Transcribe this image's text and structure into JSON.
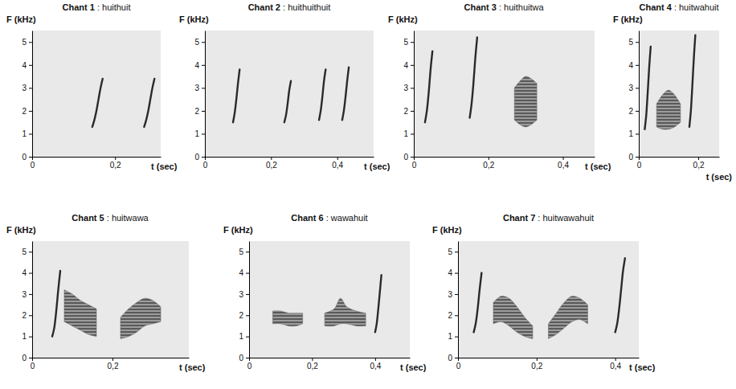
{
  "chart_data": [
    {
      "type": "spectrogram",
      "title": "Chant 1 : huithuit",
      "x_label": "t (sec)",
      "y_label": "F (kHz)",
      "xlim": [
        0,
        0.31
      ],
      "ylim": [
        0,
        5.5
      ],
      "xticks": [
        0,
        {
          "value": 0.2,
          "label": "0,2"
        }
      ],
      "yticks": [
        0,
        1,
        2,
        3,
        4,
        5
      ],
      "series": [
        {
          "type": "line",
          "x": [
            0.145,
            0.15,
            0.155,
            0.16,
            0.165,
            0.17
          ],
          "values": [
            1.3,
            1.6,
            2.0,
            2.5,
            3.0,
            3.4
          ]
        },
        {
          "type": "line",
          "x": [
            0.27,
            0.275,
            0.28,
            0.285,
            0.29,
            0.295
          ],
          "values": [
            1.3,
            1.6,
            2.0,
            2.5,
            3.0,
            3.4
          ]
        }
      ]
    },
    {
      "type": "spectrogram",
      "title": "Chant 2 : huithuithuit",
      "x_label": "t (sec)",
      "y_label": "F (kHz)",
      "xlim": [
        0,
        0.51
      ],
      "ylim": [
        0,
        5.5
      ],
      "xticks": [
        0,
        {
          "value": 0.2,
          "label": "0,2"
        },
        {
          "value": 0.4,
          "label": "0,4"
        }
      ],
      "yticks": [
        0,
        1,
        2,
        3,
        4,
        5
      ],
      "series": [
        {
          "type": "line",
          "x": [
            0.085,
            0.09,
            0.095,
            0.1,
            0.105
          ],
          "values": [
            1.5,
            1.9,
            2.5,
            3.2,
            3.8
          ]
        },
        {
          "type": "line",
          "x": [
            0.24,
            0.245,
            0.25,
            0.255,
            0.26
          ],
          "values": [
            1.5,
            1.8,
            2.3,
            2.9,
            3.3
          ]
        },
        {
          "type": "line",
          "x": [
            0.345,
            0.35,
            0.355,
            0.36,
            0.365
          ],
          "values": [
            1.6,
            2.0,
            2.6,
            3.3,
            3.8
          ]
        },
        {
          "type": "line",
          "x": [
            0.415,
            0.42,
            0.425,
            0.43,
            0.435
          ],
          "values": [
            1.6,
            2.0,
            2.6,
            3.3,
            3.9
          ]
        }
      ]
    },
    {
      "type": "spectrogram",
      "title": "Chant 3 : huithuitwa",
      "x_label": "t (sec)",
      "y_label": "F (kHz)",
      "xlim": [
        0,
        0.485
      ],
      "ylim": [
        0,
        5.5
      ],
      "xticks": [
        0,
        {
          "value": 0.2,
          "label": "0,2"
        },
        {
          "value": 0.4,
          "label": "0,4"
        }
      ],
      "yticks": [
        0,
        1,
        2,
        3,
        4,
        5
      ],
      "series": [
        {
          "type": "line",
          "x": [
            0.03,
            0.035,
            0.04,
            0.045,
            0.05
          ],
          "values": [
            1.5,
            2.0,
            2.8,
            3.8,
            4.6
          ]
        },
        {
          "type": "line",
          "x": [
            0.15,
            0.155,
            0.16,
            0.165,
            0.17
          ],
          "values": [
            1.7,
            2.3,
            3.2,
            4.3,
            5.2
          ]
        },
        {
          "type": "area",
          "x": [
            0.27,
            0.285,
            0.3,
            0.315,
            0.33
          ],
          "values": [
            3.0,
            3.3,
            3.5,
            3.4,
            3.2
          ],
          "low": [
            1.6,
            1.4,
            1.3,
            1.4,
            1.6
          ]
        }
      ]
    },
    {
      "type": "spectrogram",
      "title": "Chant 4 : huitwahuit",
      "x_label": "t (sec)",
      "y_label": "F (kHz)",
      "xlim": [
        0,
        0.27
      ],
      "ylim": [
        0,
        5.5
      ],
      "xticks": [
        0,
        {
          "value": 0.2,
          "label": "0,2"
        }
      ],
      "yticks": [
        0,
        1,
        2,
        3,
        4,
        5
      ],
      "series": [
        {
          "type": "line",
          "x": [
            0.02,
            0.025,
            0.03,
            0.035,
            0.04
          ],
          "values": [
            1.2,
            1.8,
            2.8,
            3.9,
            4.8
          ]
        },
        {
          "type": "area",
          "x": [
            0.06,
            0.08,
            0.1,
            0.12,
            0.14
          ],
          "values": [
            2.3,
            2.7,
            2.9,
            2.7,
            2.3
          ],
          "low": [
            1.3,
            1.2,
            1.2,
            1.3,
            1.5
          ]
        },
        {
          "type": "line",
          "x": [
            0.17,
            0.175,
            0.18,
            0.185,
            0.19
          ],
          "values": [
            1.3,
            2.0,
            3.1,
            4.3,
            5.3
          ]
        }
      ]
    },
    {
      "type": "spectrogram",
      "title": "Chant 5 : huitwawa",
      "x_label": "t (sec)",
      "y_label": "F (kHz)",
      "xlim": [
        0,
        0.39
      ],
      "ylim": [
        0,
        5.5
      ],
      "xticks": [
        0,
        {
          "value": 0.2,
          "label": "0,2"
        }
      ],
      "yticks": [
        0,
        1,
        2,
        3,
        4,
        5
      ],
      "series": [
        {
          "type": "line",
          "x": [
            0.05,
            0.055,
            0.06,
            0.065,
            0.07
          ],
          "values": [
            1.0,
            1.4,
            2.2,
            3.2,
            4.1
          ]
        },
        {
          "type": "area",
          "x": [
            0.08,
            0.1,
            0.12,
            0.14,
            0.16
          ],
          "values": [
            3.2,
            3.0,
            2.7,
            2.5,
            2.3
          ],
          "low": [
            1.7,
            1.5,
            1.3,
            1.1,
            1.0
          ]
        },
        {
          "type": "area",
          "x": [
            0.22,
            0.24,
            0.26,
            0.28,
            0.3,
            0.32
          ],
          "values": [
            1.9,
            2.3,
            2.6,
            2.8,
            2.7,
            2.4
          ],
          "low": [
            0.9,
            1.0,
            1.2,
            1.5,
            1.6,
            1.7
          ]
        }
      ]
    },
    {
      "type": "spectrogram",
      "title": "Chant 6 : wawahuit",
      "x_label": "t (sec)",
      "y_label": "F (kHz)",
      "xlim": [
        0,
        0.51
      ],
      "ylim": [
        0,
        5.5
      ],
      "xticks": [
        0,
        {
          "value": 0.2,
          "label": "0,2"
        },
        {
          "value": 0.4,
          "label": "0,4"
        }
      ],
      "yticks": [
        0,
        1,
        2,
        3,
        4,
        5
      ],
      "series": [
        {
          "type": "area",
          "x": [
            0.075,
            0.1,
            0.125,
            0.15,
            0.17
          ],
          "values": [
            2.2,
            2.2,
            2.1,
            2.1,
            2.1
          ],
          "low": [
            1.6,
            1.6,
            1.5,
            1.5,
            1.6
          ]
        },
        {
          "type": "area",
          "x": [
            0.24,
            0.27,
            0.29,
            0.31,
            0.34,
            0.37
          ],
          "values": [
            2.1,
            2.3,
            2.8,
            2.4,
            2.2,
            2.1
          ],
          "low": [
            1.5,
            1.5,
            1.6,
            1.6,
            1.5,
            1.5
          ]
        },
        {
          "type": "line",
          "x": [
            0.4,
            0.405,
            0.41,
            0.415,
            0.42
          ],
          "values": [
            1.2,
            1.6,
            2.3,
            3.1,
            3.9
          ]
        }
      ]
    },
    {
      "type": "spectrogram",
      "title": "Chant 7 : huitwawahuit",
      "x_label": "t (sec)",
      "y_label": "F (kHz)",
      "xlim": [
        0,
        0.46
      ],
      "ylim": [
        0,
        5.5
      ],
      "xticks": [
        0,
        {
          "value": 0.2,
          "label": "0,2"
        },
        {
          "value": 0.4,
          "label": "0,4"
        }
      ],
      "yticks": [
        0,
        1,
        2,
        3,
        4,
        5
      ],
      "series": [
        {
          "type": "line",
          "x": [
            0.04,
            0.045,
            0.05,
            0.055,
            0.06
          ],
          "values": [
            1.2,
            1.6,
            2.3,
            3.2,
            4.0
          ]
        },
        {
          "type": "area",
          "x": [
            0.09,
            0.11,
            0.13,
            0.15,
            0.17,
            0.19
          ],
          "values": [
            2.6,
            2.9,
            2.8,
            2.4,
            1.9,
            1.5
          ],
          "low": [
            1.6,
            1.7,
            1.5,
            1.2,
            1.0,
            0.9
          ]
        },
        {
          "type": "area",
          "x": [
            0.23,
            0.25,
            0.27,
            0.29,
            0.31,
            0.33
          ],
          "values": [
            1.6,
            2.1,
            2.6,
            2.9,
            2.8,
            2.5
          ],
          "low": [
            0.9,
            1.1,
            1.4,
            1.7,
            1.8,
            1.6
          ]
        },
        {
          "type": "line",
          "x": [
            0.4,
            0.405,
            0.41,
            0.415,
            0.42,
            0.425
          ],
          "values": [
            1.2,
            1.6,
            2.3,
            3.2,
            4.1,
            4.7
          ]
        }
      ]
    }
  ]
}
